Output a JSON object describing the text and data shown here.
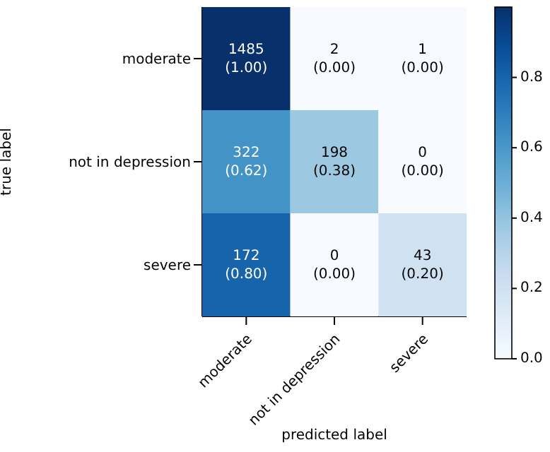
{
  "chart_data": {
    "type": "heatmap",
    "xlabel": "predicted label",
    "ylabel": "true label",
    "categories": [
      "moderate",
      "not in depression",
      "severe"
    ],
    "y_categories": [
      "moderate",
      "not in depression",
      "severe"
    ],
    "cells": [
      [
        1.0,
        0.0,
        0.0
      ],
      [
        0.62,
        0.38,
        0.0
      ],
      [
        0.8,
        0.0,
        0.2
      ]
    ],
    "cell_labels": [
      [
        "1485\n(1.00)",
        "2\n(0.00)",
        "1\n(0.00)"
      ],
      [
        "322\n(0.62)",
        "198\n(0.38)",
        "0\n(0.00)"
      ],
      [
        "172\n(0.80)",
        "0\n(0.00)",
        "43\n(0.20)"
      ]
    ],
    "clim": [
      0,
      1.0
    ],
    "cticks": [
      {
        "value": 0,
        "label": "0.0"
      },
      {
        "value": 0.2,
        "label": "0.2"
      },
      {
        "value": 0.4,
        "label": "0.4"
      },
      {
        "value": 0.6,
        "label": "0.6"
      },
      {
        "value": 0.8,
        "label": "0.8"
      }
    ]
  }
}
